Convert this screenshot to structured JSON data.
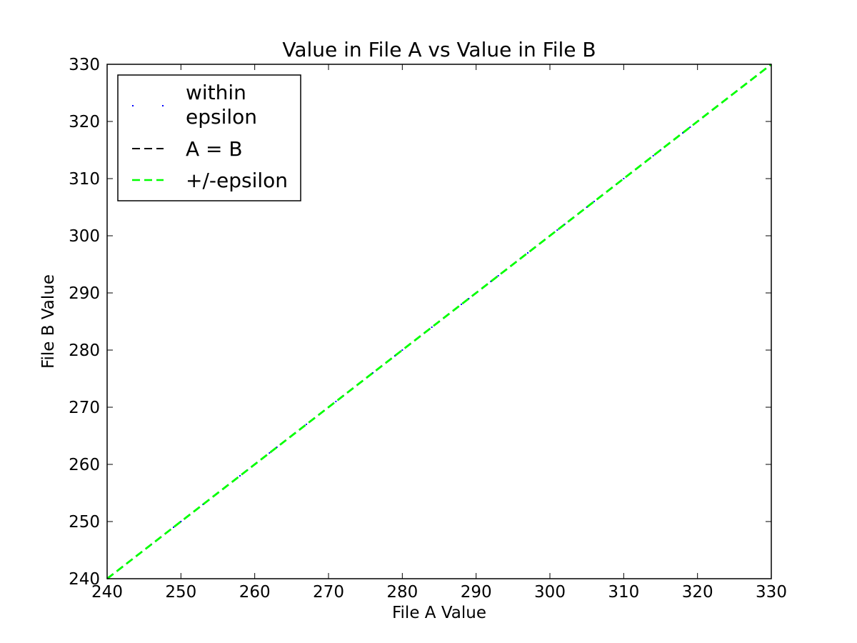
{
  "chart_data": {
    "type": "scatter",
    "title": "Value in File A vs Value in File B",
    "xlabel": "File A Value",
    "ylabel": "File B Value",
    "xlim": [
      240,
      330
    ],
    "ylim": [
      240,
      330
    ],
    "xticks": [
      "240",
      "250",
      "260",
      "270",
      "280",
      "290",
      "300",
      "310",
      "320",
      "330"
    ],
    "yticks": [
      "240",
      "250",
      "260",
      "270",
      "280",
      "290",
      "300",
      "310",
      "320",
      "330"
    ],
    "grid": false,
    "legend_position": "top-left",
    "legend": [
      {
        "label_lines": [
          "within",
          "epsilon"
        ],
        "style": "points",
        "color": "#0000ff"
      },
      {
        "label_lines": [
          "A = B"
        ],
        "style": "dashed",
        "color": "#000000"
      },
      {
        "label_lines": [
          "+/-epsilon"
        ],
        "style": "dashed",
        "color": "#00ff00"
      }
    ],
    "series": [
      {
        "name": "within epsilon",
        "kind": "points",
        "color": "#0000ff",
        "x": [
          246,
          249,
          250,
          251,
          253,
          255,
          257,
          258,
          259,
          260,
          262,
          263,
          264,
          265,
          267,
          268,
          270,
          271,
          272,
          273,
          274,
          276,
          278,
          279,
          280,
          281,
          283,
          284,
          285,
          286,
          287,
          288,
          289,
          290,
          291,
          292,
          293,
          294,
          295,
          296,
          297,
          298,
          299,
          300,
          301,
          302,
          303,
          304,
          305,
          306,
          307,
          308,
          309,
          310,
          311,
          312,
          313,
          314,
          315,
          316,
          317,
          318,
          319,
          320,
          321
        ],
        "y": [
          246,
          249,
          250,
          251,
          253,
          255,
          257,
          258,
          259,
          260,
          262,
          263,
          264,
          265,
          267,
          268,
          270,
          271,
          272,
          273,
          274,
          276,
          278,
          279,
          280,
          281,
          283,
          284,
          285,
          286,
          287,
          288,
          289,
          290,
          291,
          292,
          293,
          294,
          295,
          296,
          297,
          298,
          299,
          300,
          301,
          302,
          303,
          304,
          305,
          306,
          307,
          308,
          309,
          310,
          311,
          312,
          313,
          314,
          315,
          316,
          317,
          318,
          319,
          320,
          321
        ]
      },
      {
        "name": "A = B",
        "kind": "dashed",
        "color": "#000000",
        "x": [
          240,
          330
        ],
        "y": [
          240,
          330
        ]
      },
      {
        "name": "+/-epsilon",
        "kind": "dashed",
        "color": "#00ff00",
        "x": [
          240,
          330
        ],
        "y": [
          240,
          330
        ]
      }
    ]
  }
}
